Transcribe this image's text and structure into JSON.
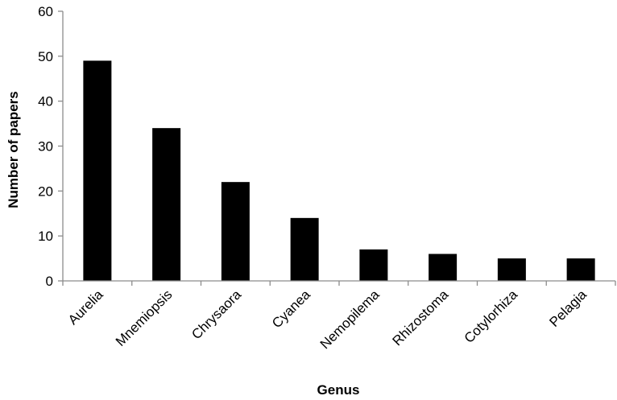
{
  "chart_data": {
    "type": "bar",
    "title": "",
    "xlabel": "Genus",
    "ylabel": "Number of papers",
    "categories": [
      "Aurelia",
      "Mnemiopsis",
      "Chrysaora",
      "Cyanea",
      "Nemopilema",
      "Rhizostoma",
      "Cotylorhiza",
      "Pelagia"
    ],
    "values": [
      49,
      34,
      22,
      14,
      7,
      6,
      5,
      5
    ],
    "ylim": [
      0,
      60
    ],
    "yticks": [
      "0",
      "10",
      "20",
      "30",
      "40",
      "50",
      "60"
    ],
    "grid": false,
    "legend": "none",
    "colors": {
      "bar": "#000000",
      "axis": "#8c8c8c"
    }
  }
}
